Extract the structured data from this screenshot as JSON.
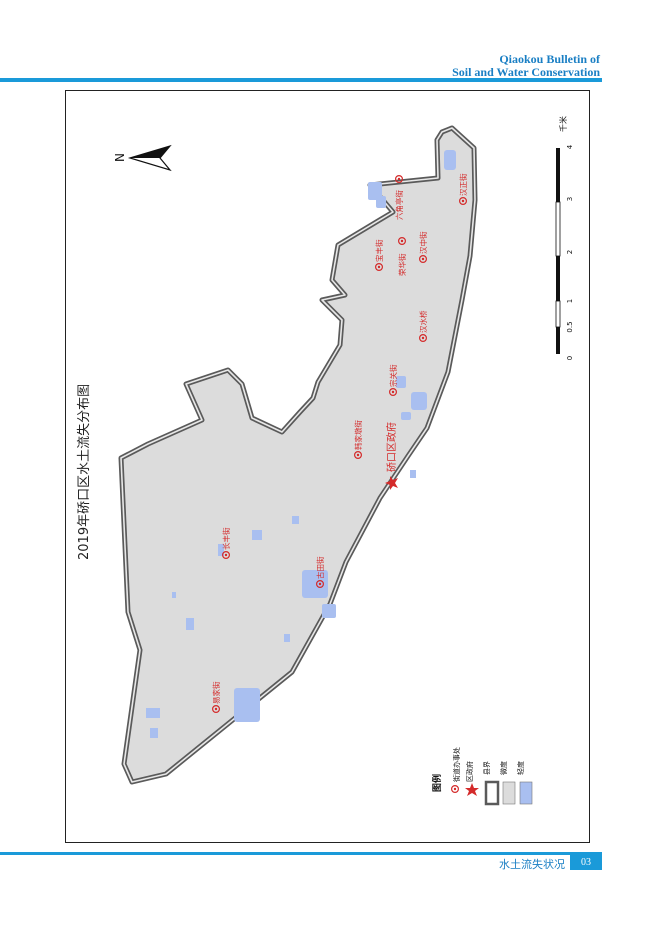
{
  "header": {
    "journal_line1": "Qiaokou Bulletin of",
    "journal_line2": "Soil and Water Conservation"
  },
  "footer": {
    "section": "水土流失状况",
    "page": "03"
  },
  "map": {
    "title": "2019年硚口区水土流失分布图",
    "north_label": "N",
    "scale": {
      "unit": "千米",
      "ticks": [
        "0",
        "0.5",
        "1",
        "2",
        "3",
        "4"
      ]
    },
    "district_government": "硚口区政府",
    "streets": [
      "六角亭街",
      "汉正街",
      "宝丰街",
      "荣华街",
      "汉中街",
      "汉水桥",
      "宗关街",
      "韩家墩街",
      "长丰街",
      "古田街",
      "易家街"
    ],
    "legend": {
      "title": "图例",
      "items": [
        "街道办事处",
        "区政府",
        "县界",
        "微度",
        "轻度"
      ]
    },
    "colors": {
      "boundary": "#6b6b6b",
      "micro": "#dcdcdc",
      "light": "#a9bff0",
      "marker": "#d42a2a",
      "accent": "#1a9ad9"
    }
  }
}
